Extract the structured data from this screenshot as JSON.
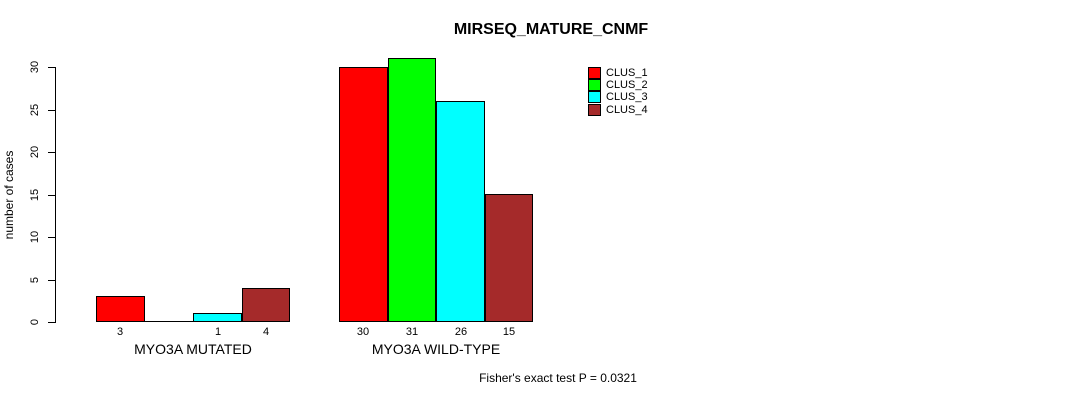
{
  "title": "MIRSEQ_MATURE_CNMF",
  "footer": "Fisher's exact test P = 0.0321",
  "chart_data": {
    "type": "bar",
    "title": "MIRSEQ_MATURE_CNMF",
    "xlabel": "",
    "ylabel": "number of cases",
    "categories": [
      "MYO3A MUTATED",
      "MYO3A WILD-TYPE"
    ],
    "series": [
      {
        "name": "CLUS_1",
        "color": "#ff0000",
        "values": [
          3,
          30
        ]
      },
      {
        "name": "CLUS_2",
        "color": "#00ff00",
        "values": [
          0,
          31
        ]
      },
      {
        "name": "CLUS_3",
        "color": "#00ffff",
        "values": [
          1,
          26
        ]
      },
      {
        "name": "CLUS_4",
        "color": "#a52a2a",
        "values": [
          4,
          15
        ]
      }
    ],
    "yticks": [
      0,
      5,
      10,
      15,
      20,
      25,
      30
    ],
    "ylim": [
      0,
      31
    ],
    "grid": false,
    "bar_value_labels_shown": true,
    "zero_value_labels_hidden": true,
    "legend_position": "top-right",
    "legend_entries": [
      "CLUS_1",
      "CLUS_2",
      "CLUS_3",
      "CLUS_4"
    ],
    "annotation": "Fisher's exact test P = 0.0321"
  }
}
